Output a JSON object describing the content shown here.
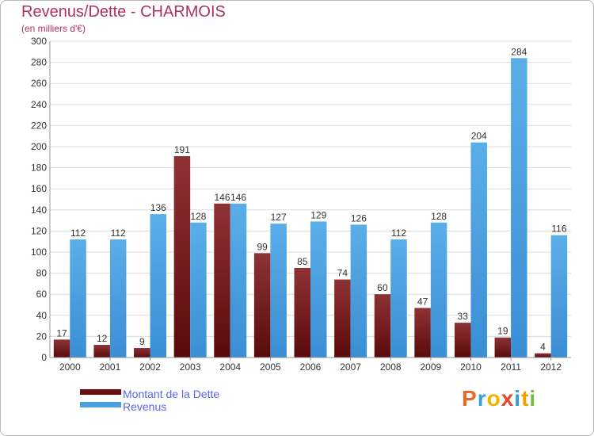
{
  "chart_data": {
    "type": "bar",
    "title": "Revenus/Dette - CHARMOIS",
    "subtitle": "(en milliers d'€)",
    "categories": [
      "2000",
      "2001",
      "2002",
      "2003",
      "2004",
      "2005",
      "2006",
      "2007",
      "2008",
      "2009",
      "2010",
      "2011",
      "2012"
    ],
    "series": [
      {
        "name": "Montant de la Dette",
        "color": "#7a1a1a",
        "values": [
          17,
          12,
          9,
          191,
          146,
          99,
          85,
          74,
          60,
          47,
          33,
          19,
          4
        ]
      },
      {
        "name": "Revenus",
        "color": "#4a9fe0",
        "values": [
          112,
          112,
          136,
          128,
          146,
          127,
          129,
          126,
          112,
          128,
          204,
          284,
          116
        ]
      }
    ],
    "ylim": [
      0,
      300
    ],
    "yticks": [
      0,
      20,
      40,
      60,
      80,
      100,
      120,
      140,
      160,
      180,
      200,
      220,
      240,
      260,
      280,
      300
    ],
    "grid": true,
    "legend_position": "bottom-left"
  },
  "branding": {
    "letters": [
      "P",
      "r",
      "o",
      "x",
      "i",
      "t",
      "i"
    ],
    "colors": [
      "#e86a2a",
      "#3aa0d8",
      "#f0b400",
      "#e8452a",
      "#2e9ad6",
      "#f0a000",
      "#78b83c"
    ]
  }
}
